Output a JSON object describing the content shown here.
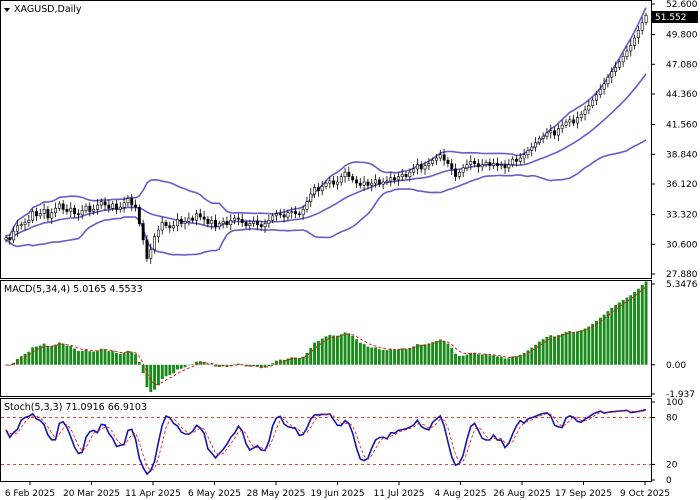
{
  "chart_data": [
    {
      "type": "candlestick",
      "title": "XAGUSD,Daily",
      "ylim": [
        27.88,
        52.6
      ],
      "yticks": [
        "52.600",
        "49.800",
        "47.080",
        "44.360",
        "41.560",
        "38.840",
        "36.120",
        "33.320",
        "30.600",
        "27.880"
      ],
      "last_price": "51.552",
      "xticks": [
        "6 Feb 2025",
        "20 Mar 2025",
        "11 Apr 2025",
        "6 May 2025",
        "28 May 2025",
        "19 Jun 2025",
        "11 Jul 2025",
        "4 Aug 2025",
        "26 Aug 2025",
        "17 Sep 2025",
        "9 Oct 2025"
      ],
      "close": [
        31.2,
        31.0,
        31.8,
        32.3,
        32.4,
        32.6,
        32.8,
        33.6,
        33.2,
        33.4,
        33.8,
        33.0,
        33.5,
        33.9,
        34.3,
        33.8,
        33.6,
        33.9,
        33.4,
        33.3,
        33.7,
        34.1,
        33.6,
        33.8,
        34.2,
        34.5,
        34.2,
        33.9,
        34.3,
        33.8,
        34.0,
        34.4,
        34.8,
        34.2,
        34.0,
        32.5,
        31.0,
        29.3,
        30.1,
        31.3,
        31.9,
        32.6,
        32.3,
        32.1,
        32.3,
        32.9,
        32.5,
        32.7,
        33.0,
        32.8,
        33.4,
        33.1,
        32.9,
        32.5,
        32.8,
        32.2,
        32.5,
        32.7,
        32.4,
        32.8,
        33.0,
        32.9,
        32.6,
        32.3,
        32.5,
        32.7,
        32.4,
        32.2,
        32.5,
        32.8,
        33.2,
        33.4,
        33.3,
        33.1,
        33.5,
        33.6,
        33.4,
        33.3,
        33.8,
        34.5,
        35.2,
        35.8,
        35.5,
        35.9,
        36.2,
        36.4,
        36.1,
        36.3,
        36.8,
        37.2,
        36.8,
        36.5,
        36.2,
        36.0,
        36.3,
        36.0,
        36.2,
        36.5,
        36.1,
        36.3,
        36.4,
        36.7,
        36.5,
        36.8,
        37.0,
        36.8,
        37.2,
        37.5,
        37.9,
        37.5,
        37.8,
        38.0,
        38.3,
        38.5,
        38.8,
        38.3,
        38.0,
        37.5,
        36.8,
        37.2,
        37.6,
        37.9,
        38.2,
        38.0,
        37.7,
        37.9,
        38.1,
        37.8,
        38.0,
        37.8,
        37.9,
        37.6,
        37.9,
        38.4,
        38.2,
        38.5,
        38.8,
        39.2,
        39.5,
        39.9,
        40.3,
        40.5,
        40.8,
        41.0,
        40.6,
        41.2,
        41.5,
        41.8,
        42.0,
        41.7,
        42.2,
        42.5,
        42.9,
        43.3,
        43.8,
        44.3,
        44.8,
        45.3,
        45.9,
        46.4,
        46.8,
        47.3,
        47.8,
        48.3,
        48.8,
        49.5,
        50.2,
        50.9,
        51.552
      ],
      "bollinger": {
        "period": 20,
        "deviations": 2
      },
      "stochastic_levels": {
        "overbought": 80,
        "oversold": 20
      }
    },
    {
      "type": "bar",
      "title": "MACD(5,34,4) 5.0165 4.5533",
      "ylim": [
        -1.937,
        5.3476
      ],
      "yticks": [
        "5.3476",
        "0.00",
        "-1.937"
      ]
    },
    {
      "type": "line",
      "title": "Stoch(5,3,3) 71.0916 66.9103",
      "ylim": [
        0,
        100
      ],
      "yticks": [
        "100",
        "80",
        "20",
        "0"
      ]
    }
  ]
}
